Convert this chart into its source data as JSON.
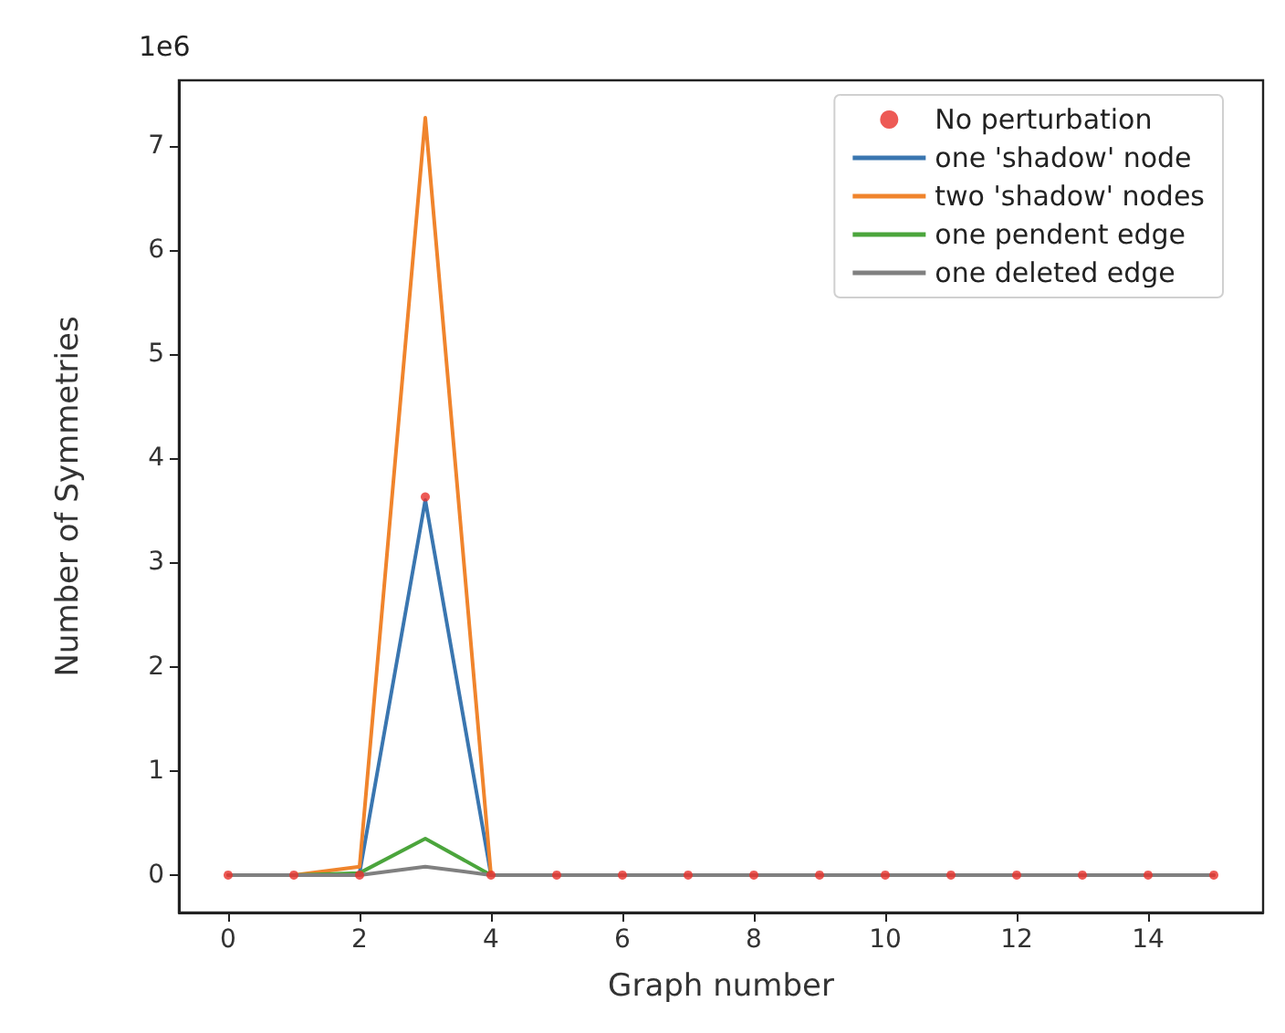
{
  "chart_data": {
    "type": "line",
    "xlabel": "Graph number",
    "ylabel": "Number of Symmetries",
    "annotations": [
      "1e6"
    ],
    "x": [
      0,
      1,
      2,
      3,
      4,
      5,
      6,
      7,
      8,
      9,
      10,
      11,
      12,
      13,
      14,
      15
    ],
    "series": [
      {
        "name": "No perturbation",
        "type": "scatter",
        "marker": "circle",
        "color": "#e8312a",
        "values": [
          0,
          0,
          0,
          3.63,
          0,
          0,
          0,
          0,
          0,
          0,
          0,
          0,
          0,
          0,
          0,
          0
        ]
      },
      {
        "name": "one 'shadow' node",
        "color": "#3a76b0",
        "values": [
          null,
          null,
          0.02,
          3.6,
          0,
          null,
          null,
          null,
          null,
          null,
          null,
          null,
          null,
          null,
          null,
          null
        ]
      },
      {
        "name": "two 'shadow' nodes",
        "color": "#f0842c",
        "values": [
          0,
          0,
          0.08,
          7.27,
          0,
          0,
          0,
          0,
          0,
          0,
          0,
          0,
          0,
          0,
          0,
          0
        ]
      },
      {
        "name": "one pendent edge",
        "color": "#4ba53c",
        "values": [
          null,
          0,
          0.02,
          0.35,
          0,
          null,
          null,
          null,
          null,
          null,
          null,
          null,
          null,
          null,
          null,
          null
        ]
      },
      {
        "name": "one deleted edge",
        "color": "#808080",
        "values": [
          0,
          0,
          0,
          0.08,
          0,
          0,
          0,
          0,
          0,
          0,
          0,
          0,
          0,
          0,
          0,
          0
        ]
      }
    ],
    "xlim": [
      -0.75,
      15.75
    ],
    "xticks": [
      0,
      2,
      4,
      6,
      8,
      10,
      12,
      14
    ],
    "ylim": [
      -0.36,
      7.63
    ],
    "yticks": [
      0,
      1,
      2,
      3,
      4,
      5,
      6,
      7
    ],
    "grid": false,
    "legend": "top right",
    "marker": "none",
    "line_style": "solid"
  }
}
